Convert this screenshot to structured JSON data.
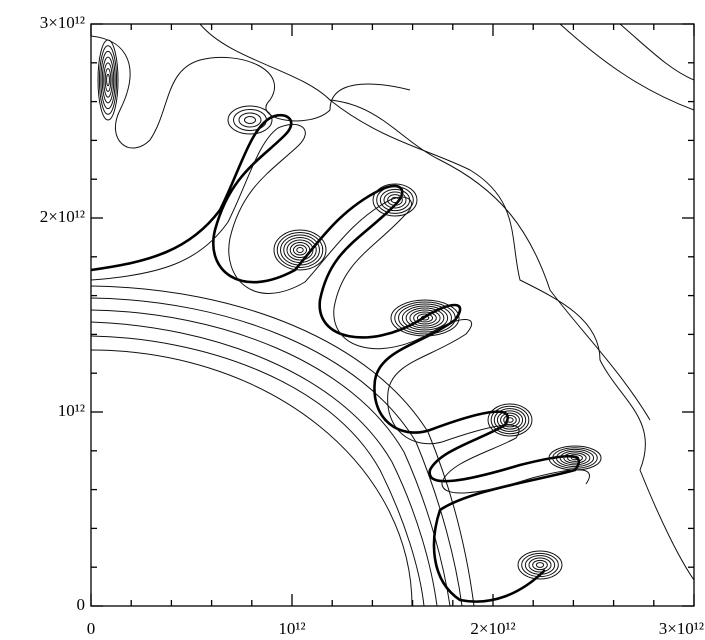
{
  "chart_data": {
    "type": "contour",
    "xlim": [
      0,
      3000000000000
    ],
    "ylim": [
      0,
      3000000000000
    ],
    "xticks": [
      {
        "value": 0,
        "label": "0"
      },
      {
        "value": 1000000000000,
        "label": "10¹²"
      },
      {
        "value": 2000000000000,
        "label": "2×10¹²"
      },
      {
        "value": 3000000000000,
        "label": "3×10¹²"
      }
    ],
    "yticks": [
      {
        "value": 0,
        "label": "0"
      },
      {
        "value": 1000000000000,
        "label": "10¹²"
      },
      {
        "value": 2000000000000,
        "label": "2×10¹²"
      },
      {
        "value": 3000000000000,
        "label": "3×10¹²"
      }
    ],
    "minor_ticks": [
      200000000000,
      400000000000,
      600000000000,
      800000000000,
      1200000000000,
      1400000000000,
      1600000000000,
      1800000000000,
      2200000000000,
      2400000000000,
      2600000000000,
      2800000000000
    ]
  }
}
